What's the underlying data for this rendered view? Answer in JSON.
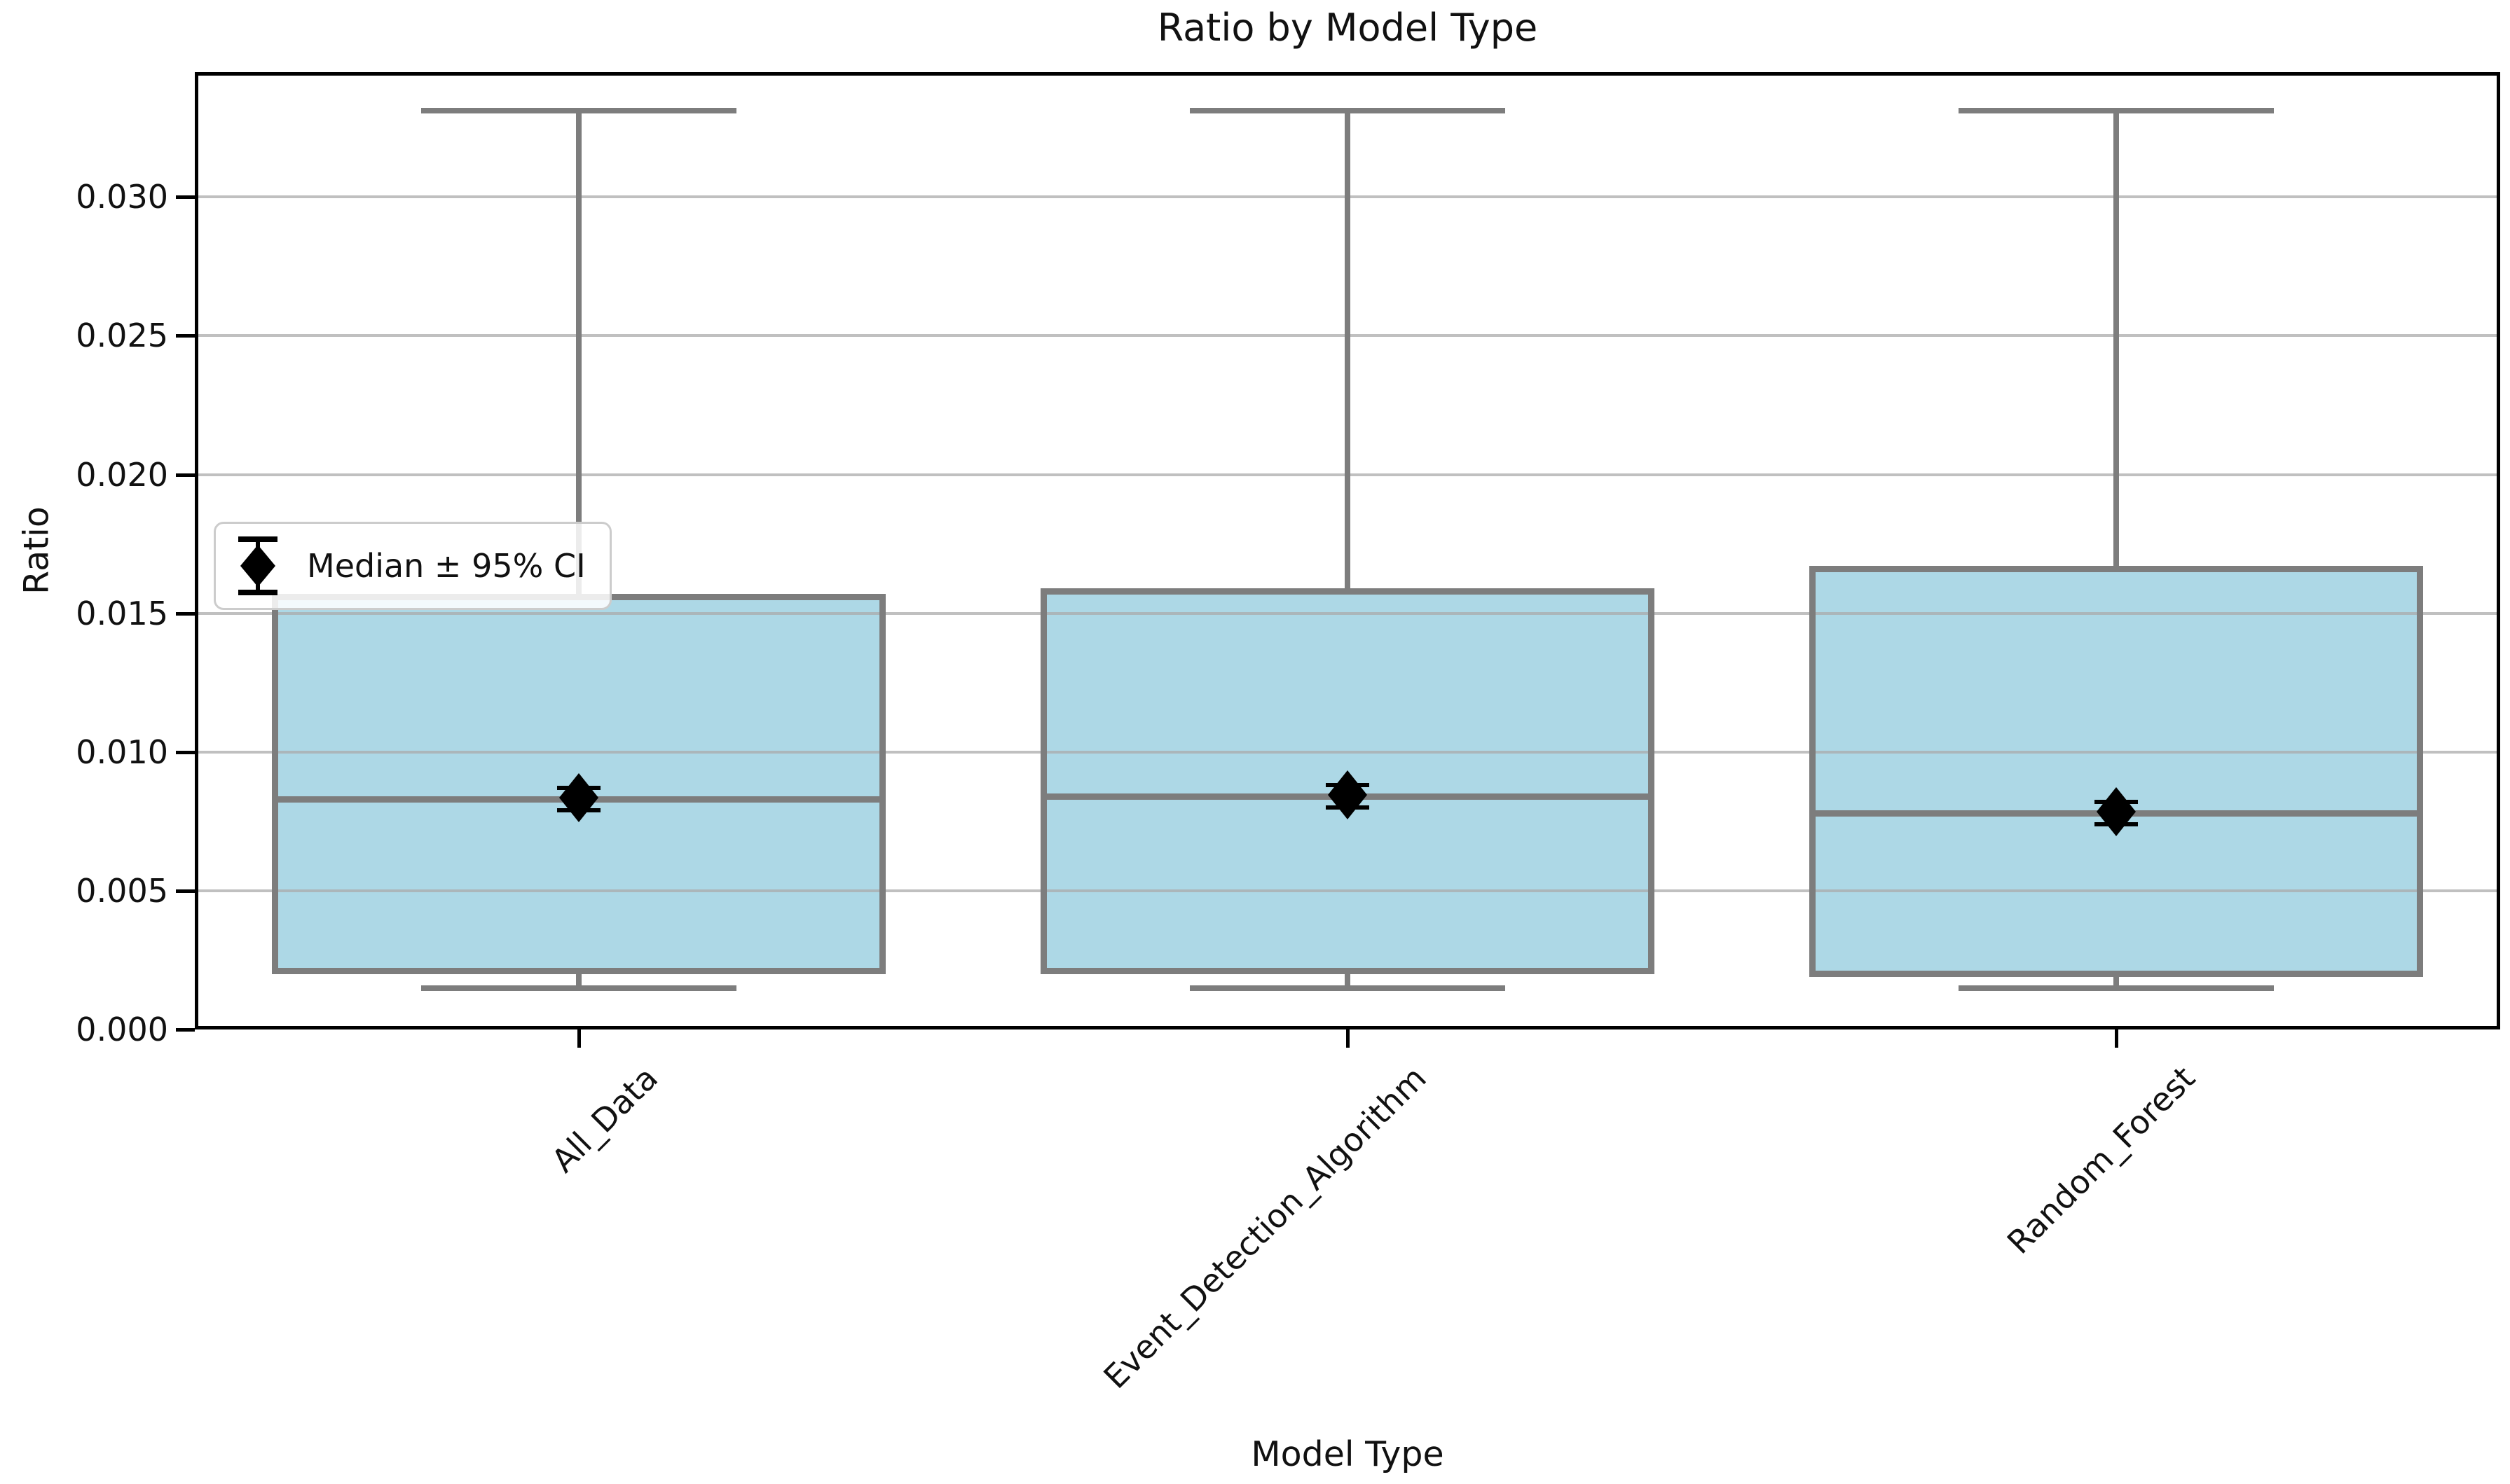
{
  "title": "Ratio by Model Type",
  "axes": {
    "x_label": "Model Type",
    "y_label": "Ratio"
  },
  "legend": {
    "label": "Median ± 95% CI",
    "marker": "diamond-errorbar-icon"
  },
  "chart_data": {
    "type": "box",
    "title": "Ratio by Model Type",
    "xlabel": "Model Type",
    "ylabel": "Ratio",
    "categories": [
      "All_Data",
      "Event_Detection_Algorithm",
      "Random_Forest"
    ],
    "ylim": [
      0.0,
      0.0345
    ],
    "yticks": [
      0.0,
      0.005,
      0.01,
      0.015,
      0.02,
      0.025,
      0.03
    ],
    "ytick_labels": [
      "0.000",
      "0.005",
      "0.010",
      "0.015",
      "0.020",
      "0.025",
      "0.030"
    ],
    "grid": true,
    "legend_position": "upper-left-inside",
    "legend_label": "Median ± 95% CI",
    "boxes": [
      {
        "label": "All_Data",
        "whislo": 0.0015,
        "q1": 0.002,
        "med": 0.0083,
        "q3": 0.0157,
        "whishi": 0.0331,
        "ci_low": 0.0079,
        "ci_high": 0.0087
      },
      {
        "label": "Event_Detection_Algorithm",
        "whislo": 0.0015,
        "q1": 0.002,
        "med": 0.0084,
        "q3": 0.0159,
        "whishi": 0.0331,
        "ci_low": 0.008,
        "ci_high": 0.0088
      },
      {
        "label": "Random_Forest",
        "whislo": 0.0015,
        "q1": 0.0019,
        "med": 0.0078,
        "q3": 0.0167,
        "whishi": 0.0331,
        "ci_low": 0.0074,
        "ci_high": 0.0082
      }
    ],
    "colors": {
      "box_fill": "#ADD8E6",
      "box_edge": "#7D7D7D",
      "grid": "#ABABAB",
      "spine": "#000000",
      "median_marker": "#000000"
    }
  }
}
